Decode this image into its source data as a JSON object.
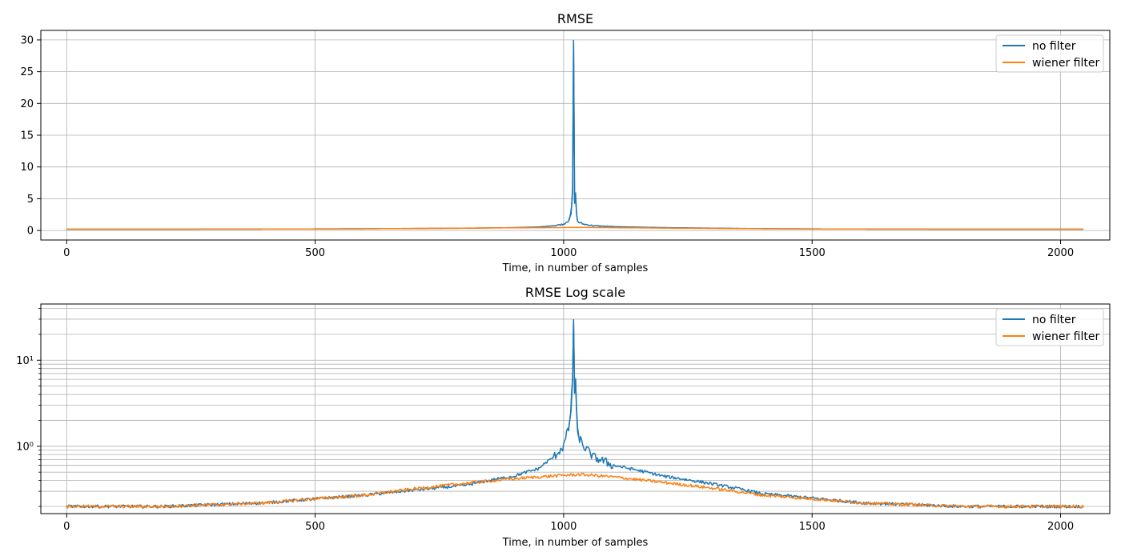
{
  "chart_data": [
    {
      "type": "line",
      "title": "RMSE",
      "xlabel": "Time, in number of samples",
      "ylabel": "",
      "xlim": [
        -52,
        2099
      ],
      "ylim": [
        -1.5,
        31.5
      ],
      "yscale": "linear",
      "x_ticks": [
        0,
        500,
        1000,
        1500,
        2000
      ],
      "x_tick_labels": [
        "0",
        "500",
        "1000",
        "1500",
        "2000"
      ],
      "y_ticks": [
        0,
        5,
        10,
        15,
        20,
        25,
        30
      ],
      "y_tick_labels": [
        "0",
        "5",
        "10",
        "15",
        "20",
        "25",
        "30"
      ],
      "grid": true,
      "legend_position": "top-right",
      "series": [
        {
          "name": "no filter",
          "color": "#1f77b4",
          "x": [
            0,
            200,
            400,
            600,
            800,
            900,
            950,
            980,
            1000,
            1010,
            1015,
            1018,
            1020,
            1022,
            1024,
            1026,
            1028,
            1030,
            1040,
            1060,
            1100,
            1200,
            1400,
            1600,
            1800,
            2047
          ],
          "y": [
            0.2,
            0.2,
            0.22,
            0.27,
            0.35,
            0.45,
            0.55,
            0.75,
            1.0,
            1.6,
            2.6,
            6.0,
            30.0,
            4.2,
            6.0,
            2.5,
            1.5,
            1.3,
            1.0,
            0.75,
            0.6,
            0.45,
            0.28,
            0.22,
            0.2,
            0.2
          ]
        },
        {
          "name": "wiener filter",
          "color": "#ff7f0e",
          "x": [
            0,
            200,
            400,
            600,
            800,
            900,
            1000,
            1030,
            1060,
            1100,
            1200,
            1400,
            1600,
            1800,
            2047
          ],
          "y": [
            0.2,
            0.2,
            0.22,
            0.27,
            0.37,
            0.42,
            0.46,
            0.47,
            0.46,
            0.44,
            0.38,
            0.27,
            0.22,
            0.2,
            0.2
          ]
        }
      ]
    },
    {
      "type": "line",
      "title": "RMSE Log scale",
      "xlabel": "Time, in number of samples",
      "ylabel": "",
      "xlim": [
        -52,
        2099
      ],
      "ylim": [
        0.165,
        45
      ],
      "yscale": "log",
      "x_ticks": [
        0,
        500,
        1000,
        1500,
        2000
      ],
      "x_tick_labels": [
        "0",
        "500",
        "1000",
        "1500",
        "2000"
      ],
      "y_ticks": [
        1,
        10
      ],
      "y_tick_labels": [
        "10⁰",
        "10¹"
      ],
      "y_minor_ticks": [
        0.2,
        0.3,
        0.4,
        0.5,
        0.6,
        0.7,
        0.8,
        0.9,
        2,
        3,
        4,
        5,
        6,
        7,
        8,
        9,
        20,
        30,
        40
      ],
      "grid": true,
      "legend_position": "top-right",
      "series": [
        {
          "name": "no filter",
          "color": "#1f77b4",
          "x": [
            0,
            200,
            400,
            600,
            800,
            900,
            950,
            980,
            1000,
            1010,
            1015,
            1018,
            1020,
            1022,
            1024,
            1026,
            1028,
            1030,
            1040,
            1060,
            1100,
            1200,
            1400,
            1600,
            1800,
            2047
          ],
          "y": [
            0.2,
            0.2,
            0.22,
            0.27,
            0.35,
            0.45,
            0.55,
            0.75,
            1.0,
            1.6,
            2.6,
            6.0,
            30.0,
            4.2,
            6.0,
            2.5,
            1.5,
            1.3,
            1.0,
            0.75,
            0.6,
            0.45,
            0.28,
            0.22,
            0.2,
            0.2
          ]
        },
        {
          "name": "wiener filter",
          "color": "#ff7f0e",
          "x": [
            0,
            200,
            400,
            600,
            800,
            900,
            1000,
            1030,
            1060,
            1100,
            1200,
            1400,
            1600,
            1800,
            2047
          ],
          "y": [
            0.2,
            0.2,
            0.22,
            0.27,
            0.37,
            0.42,
            0.46,
            0.47,
            0.46,
            0.44,
            0.38,
            0.27,
            0.22,
            0.2,
            0.2
          ]
        }
      ]
    }
  ]
}
